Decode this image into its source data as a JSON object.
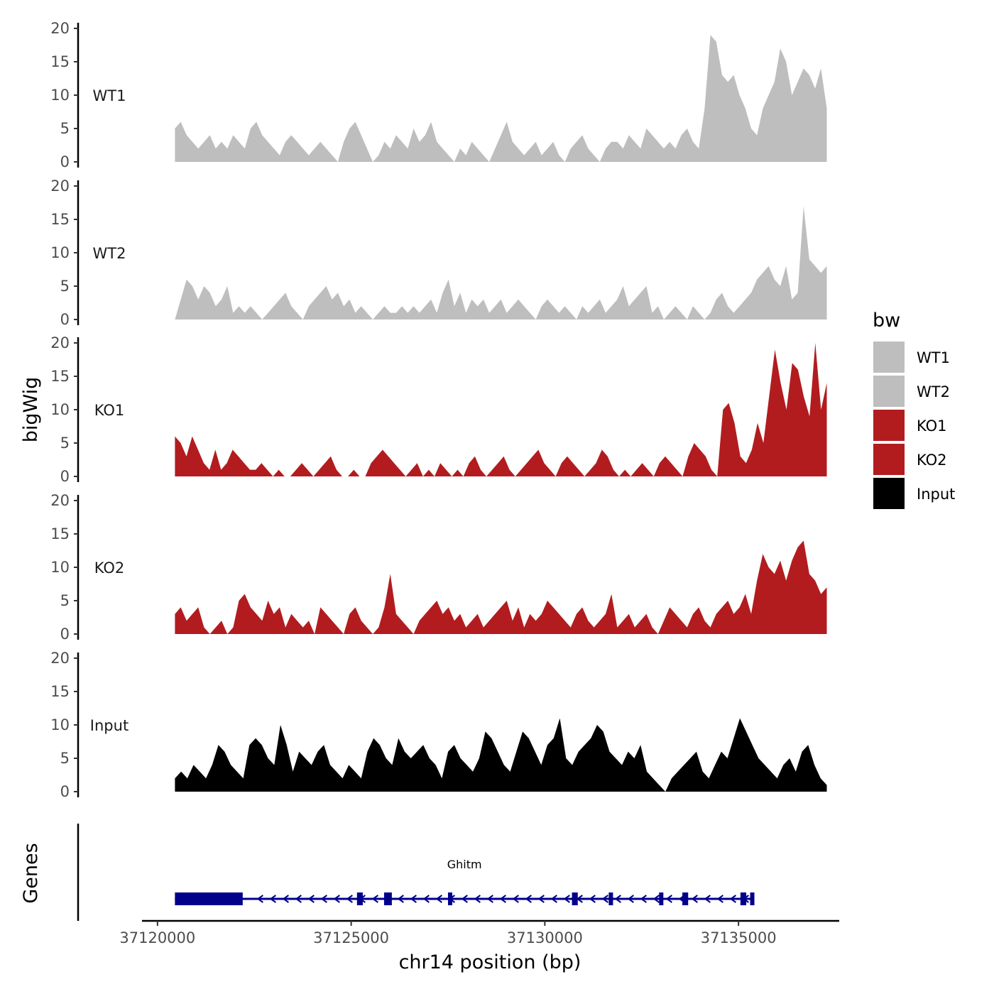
{
  "chart_data": {
    "type": "area",
    "title": "",
    "xlabel": "chr14 position (bp)",
    "ylabel": "bigWig",
    "genes_label": "Genes",
    "xlim": [
      37119600,
      37137600
    ],
    "data_x_range": [
      37120450,
      37137280
    ],
    "x_ticks": [
      37120000,
      37125000,
      37130000,
      37135000
    ],
    "x_tick_labels": [
      "37120000",
      "37125000",
      "37130000",
      "37135000"
    ],
    "ylim": [
      0,
      20
    ],
    "y_ticks": [
      0,
      5,
      10,
      15,
      20
    ],
    "y_tick_labels": [
      "0",
      "5",
      "10",
      "15",
      "20"
    ],
    "legend": {
      "title": "bw",
      "position": "right",
      "entries": [
        {
          "label": "WT1",
          "color": "#bebebe"
        },
        {
          "label": "WT2",
          "color": "#bebebe"
        },
        {
          "label": "KO1",
          "color": "#b21c1f"
        },
        {
          "label": "KO2",
          "color": "#b21c1f"
        },
        {
          "label": "Input",
          "color": "#000000"
        }
      ]
    },
    "tracks": [
      {
        "name": "WT1",
        "color": "#bebebe",
        "values": [
          5,
          6,
          4,
          3,
          2,
          3,
          4,
          2,
          3,
          2,
          4,
          3,
          2,
          5,
          6,
          4,
          3,
          2,
          1,
          3,
          4,
          3,
          2,
          1,
          2,
          3,
          2,
          1,
          0,
          3,
          5,
          6,
          4,
          2,
          0,
          1,
          3,
          2,
          4,
          3,
          2,
          5,
          3,
          4,
          6,
          3,
          2,
          1,
          0,
          2,
          1,
          3,
          2,
          1,
          0,
          2,
          4,
          6,
          3,
          2,
          1,
          2,
          3,
          1,
          2,
          3,
          1,
          0,
          2,
          3,
          4,
          2,
          1,
          0,
          2,
          3,
          3,
          2,
          4,
          3,
          2,
          5,
          4,
          3,
          2,
          3,
          2,
          4,
          5,
          3,
          2,
          8,
          19,
          18,
          13,
          12,
          13,
          10,
          8,
          5,
          4,
          8,
          10,
          12,
          17,
          15,
          10,
          12,
          14,
          13,
          11,
          14,
          8
        ]
      },
      {
        "name": "WT2",
        "color": "#bebebe",
        "values": [
          0,
          3,
          6,
          5,
          3,
          5,
          4,
          2,
          3,
          5,
          1,
          2,
          1,
          2,
          1,
          0,
          1,
          2,
          3,
          4,
          2,
          1,
          0,
          2,
          3,
          4,
          5,
          3,
          4,
          2,
          3,
          1,
          2,
          1,
          0,
          1,
          2,
          1,
          1,
          2,
          1,
          2,
          1,
          2,
          3,
          1,
          4,
          6,
          2,
          4,
          1,
          3,
          2,
          3,
          1,
          2,
          3,
          1,
          2,
          3,
          2,
          1,
          0,
          2,
          3,
          2,
          1,
          2,
          1,
          0,
          2,
          1,
          2,
          3,
          1,
          2,
          3,
          5,
          2,
          3,
          4,
          5,
          1,
          2,
          0,
          1,
          2,
          1,
          0,
          2,
          1,
          0,
          1,
          3,
          4,
          2,
          1,
          2,
          3,
          4,
          6,
          7,
          8,
          6,
          5,
          8,
          3,
          4,
          17,
          9,
          8,
          7,
          8
        ]
      },
      {
        "name": "KO1",
        "color": "#b21c1f",
        "values": [
          6,
          5,
          3,
          6,
          4,
          2,
          1,
          4,
          1,
          2,
          4,
          3,
          2,
          1,
          1,
          2,
          1,
          0,
          1,
          0,
          0,
          1,
          2,
          1,
          0,
          1,
          2,
          3,
          1,
          0,
          0,
          1,
          0,
          0,
          2,
          3,
          4,
          3,
          2,
          1,
          0,
          1,
          2,
          0,
          1,
          0,
          2,
          1,
          0,
          1,
          0,
          2,
          3,
          1,
          0,
          1,
          2,
          3,
          1,
          0,
          1,
          2,
          3,
          4,
          2,
          1,
          0,
          2,
          3,
          2,
          1,
          0,
          1,
          2,
          4,
          3,
          1,
          0,
          1,
          0,
          1,
          2,
          1,
          0,
          2,
          3,
          2,
          1,
          0,
          3,
          5,
          4,
          3,
          1,
          0,
          10,
          11,
          8,
          3,
          2,
          4,
          8,
          5,
          12,
          19,
          14,
          10,
          17,
          16,
          12,
          9,
          20,
          10,
          14
        ]
      },
      {
        "name": "KO2",
        "color": "#b21c1f",
        "values": [
          3,
          4,
          2,
          3,
          4,
          1,
          0,
          1,
          2,
          0,
          1,
          5,
          6,
          4,
          3,
          2,
          5,
          3,
          4,
          1,
          3,
          2,
          1,
          2,
          0,
          4,
          3,
          2,
          1,
          0,
          3,
          4,
          2,
          1,
          0,
          1,
          4,
          9,
          3,
          2,
          1,
          0,
          2,
          3,
          4,
          5,
          3,
          4,
          2,
          3,
          1,
          2,
          3,
          1,
          2,
          3,
          4,
          5,
          2,
          4,
          1,
          3,
          2,
          3,
          5,
          4,
          3,
          2,
          1,
          3,
          4,
          2,
          1,
          2,
          3,
          6,
          1,
          2,
          3,
          1,
          2,
          3,
          1,
          0,
          2,
          4,
          3,
          2,
          1,
          3,
          4,
          2,
          1,
          3,
          4,
          5,
          3,
          4,
          6,
          3,
          8,
          12,
          10,
          9,
          11,
          8,
          11,
          13,
          14,
          9,
          8,
          6,
          7
        ]
      },
      {
        "name": "Input",
        "color": "#000000",
        "values": [
          2,
          3,
          2,
          4,
          3,
          2,
          4,
          7,
          6,
          4,
          3,
          2,
          7,
          8,
          7,
          5,
          4,
          10,
          7,
          3,
          6,
          5,
          4,
          6,
          7,
          4,
          3,
          2,
          4,
          3,
          2,
          6,
          8,
          7,
          5,
          4,
          8,
          6,
          5,
          6,
          7,
          5,
          4,
          2,
          6,
          7,
          5,
          4,
          3,
          5,
          9,
          8,
          6,
          4,
          3,
          6,
          9,
          8,
          6,
          4,
          7,
          8,
          11,
          5,
          4,
          6,
          7,
          8,
          10,
          9,
          6,
          5,
          4,
          6,
          5,
          7,
          3,
          2,
          1,
          0,
          2,
          3,
          4,
          5,
          6,
          3,
          2,
          4,
          6,
          5,
          8,
          11,
          9,
          7,
          5,
          4,
          3,
          2,
          4,
          5,
          3,
          6,
          7,
          4,
          2,
          1
        ]
      }
    ],
    "gene": {
      "name": "Ghitm",
      "strand": "-",
      "color": "#00008b",
      "start": 37120450,
      "end": 37135400,
      "exons": [
        [
          37120450,
          37122200
        ],
        [
          37125150,
          37125300
        ],
        [
          37125850,
          37126050
        ],
        [
          37127500,
          37127600
        ],
        [
          37130700,
          37130850
        ],
        [
          37131650,
          37131750
        ],
        [
          37132950,
          37133050
        ],
        [
          37133550,
          37133700
        ],
        [
          37135050,
          37135200
        ],
        [
          37135300,
          37135400
        ]
      ]
    }
  }
}
